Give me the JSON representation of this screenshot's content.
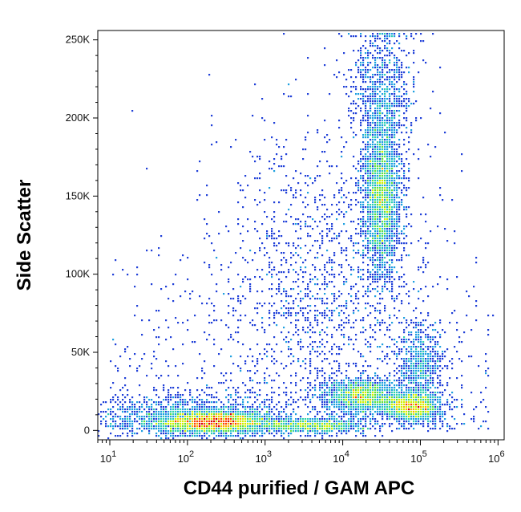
{
  "chart_data": {
    "type": "scatter",
    "subtype": "flow-cytometry-density-plot",
    "title": "",
    "xlabel": "CD44 purified / GAM APC",
    "ylabel": "Side Scatter",
    "xscale": "log",
    "xlim": [
      7,
      1200000
    ],
    "ylim": [
      -6000,
      256000
    ],
    "x_ticks": [
      {
        "value": 10,
        "base": "10",
        "exp": "1"
      },
      {
        "value": 100,
        "base": "10",
        "exp": "2"
      },
      {
        "value": 1000,
        "base": "10",
        "exp": "3"
      },
      {
        "value": 10000,
        "base": "10",
        "exp": "4"
      },
      {
        "value": 100000,
        "base": "10",
        "exp": "5"
      },
      {
        "value": 1000000,
        "base": "10",
        "exp": "6"
      }
    ],
    "y_ticks": [
      {
        "value": 0,
        "label": "0"
      },
      {
        "value": 50000,
        "label": "50K"
      },
      {
        "value": 100000,
        "label": "100K"
      },
      {
        "value": 150000,
        "label": "150K"
      },
      {
        "value": 200000,
        "label": "200K"
      },
      {
        "value": 250000,
        "label": "250K"
      }
    ],
    "grid": false,
    "legend": "none",
    "color_scale": [
      "#1a1aa8",
      "#2040d8",
      "#1fa0e0",
      "#30d0b0",
      "#60e040",
      "#d0f000",
      "#ffb000",
      "#ff4000",
      "#d80000"
    ],
    "populations": [
      {
        "x_center": 220,
        "y_center": 5000,
        "x_spread_decades": 0.35,
        "y_spread": 3500,
        "count": 2600
      },
      {
        "x_center": 100,
        "y_center": 8000,
        "x_spread_decades": 0.7,
        "y_spread": 7000,
        "count": 1400
      },
      {
        "x_center": 4000,
        "y_center": 3000,
        "x_spread_decades": 0.35,
        "y_spread": 2500,
        "count": 900
      },
      {
        "x_center": 18000,
        "y_center": 22000,
        "x_spread_decades": 0.25,
        "y_spread": 5500,
        "count": 1500
      },
      {
        "x_center": 80000,
        "y_center": 15000,
        "x_spread_decades": 0.18,
        "y_spread": 4500,
        "count": 1400
      },
      {
        "x_center": 100000,
        "y_center": 40000,
        "x_spread_decades": 0.15,
        "y_spread": 14000,
        "count": 700
      },
      {
        "x_center": 32000,
        "y_center": 150000,
        "x_spread_decades": 0.12,
        "y_spread": 26000,
        "count": 2600
      },
      {
        "x_center": 32000,
        "y_center": 215000,
        "x_spread_decades": 0.2,
        "y_spread": 25000,
        "count": 900
      },
      {
        "x_center": 5000,
        "y_center": 90000,
        "x_spread_decades": 0.7,
        "y_spread": 55000,
        "count": 1500
      }
    ]
  }
}
